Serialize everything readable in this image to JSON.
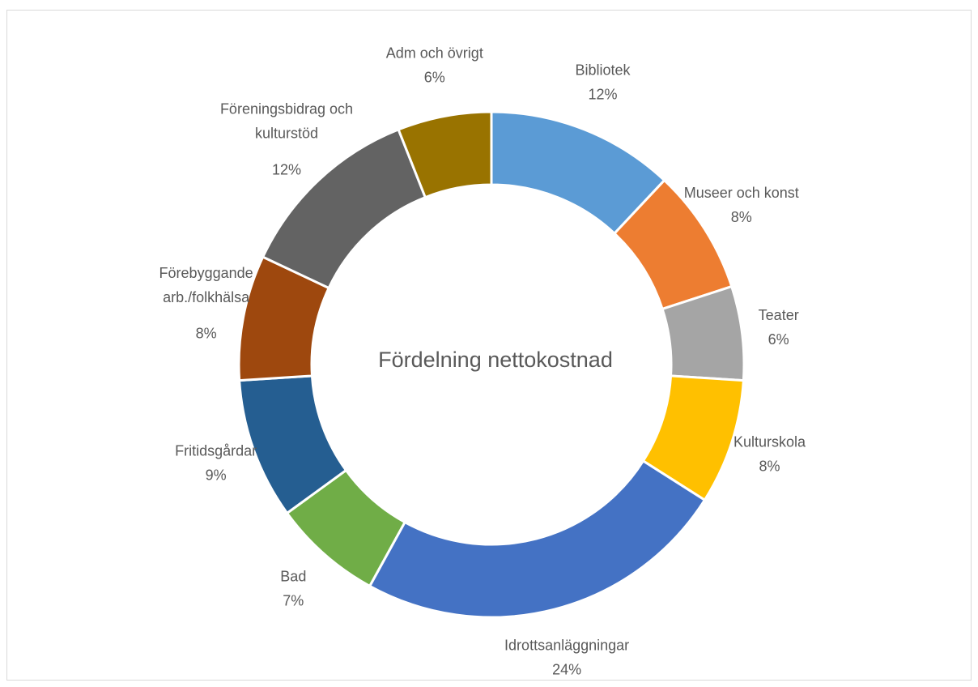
{
  "chart_data": {
    "type": "donut",
    "title": "Fördelning nettokostnad",
    "categories": [
      "Bibliotek",
      "Museer och konst",
      "Teater",
      "Kulturskola",
      "Idrottsanläggningar",
      "Bad",
      "Fritidsgårdar",
      "Förebyggande\narb./folkhälsa",
      "Föreningsbidrag och\nkulturstöd",
      "Adm och övrigt"
    ],
    "values": [
      12,
      8,
      6,
      8,
      24,
      7,
      9,
      8,
      12,
      6
    ],
    "value_labels": [
      "12%",
      "8%",
      "6%",
      "8%",
      "24%",
      "7%",
      "9%",
      "8%",
      "12%",
      "6%"
    ],
    "colors": [
      "#5b9bd5",
      "#ed7d31",
      "#a5a5a5",
      "#ffc000",
      "#4472c4",
      "#70ad47",
      "#255e91",
      "#9e480e",
      "#636363",
      "#997300"
    ]
  }
}
